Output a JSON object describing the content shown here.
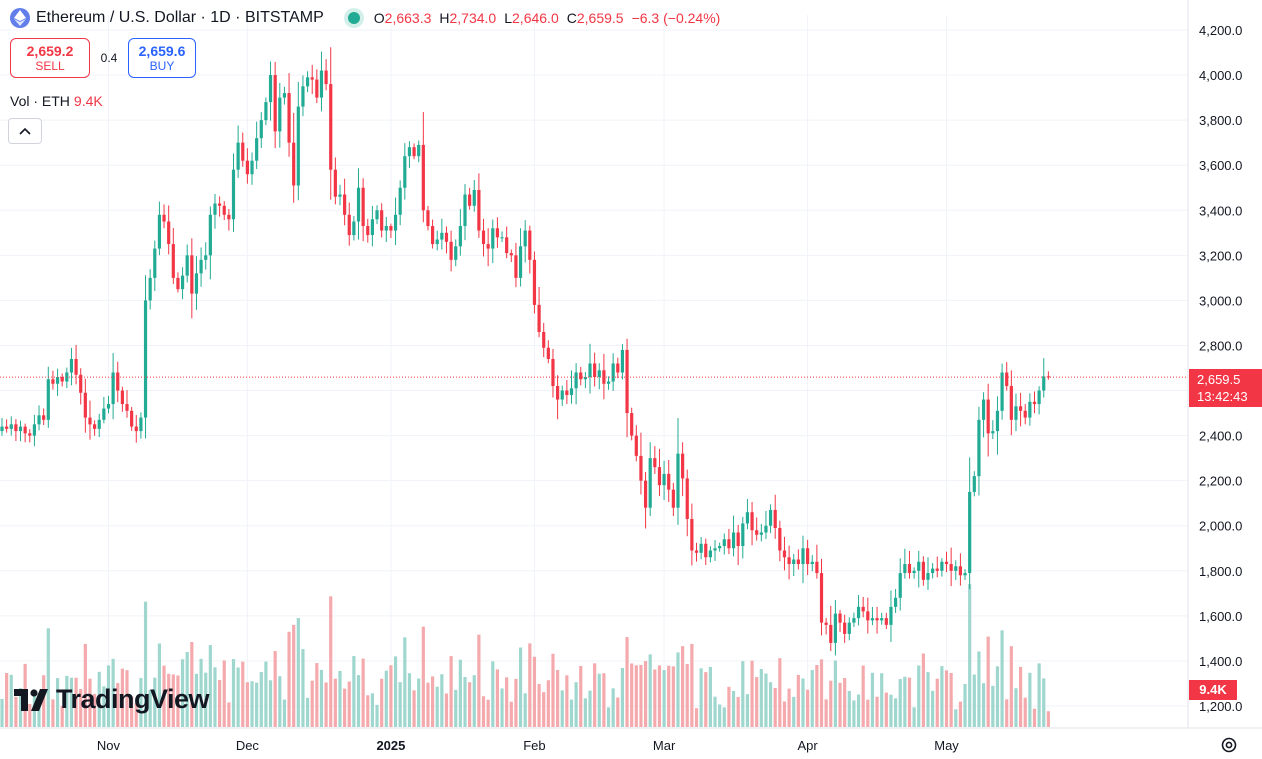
{
  "header": {
    "title": "Ethereum / U.S. Dollar · 1D · BITSTAMP",
    "ohlc": [
      {
        "k": "O",
        "v": "2,663.3"
      },
      {
        "k": "H",
        "v": "2,734.0"
      },
      {
        "k": "L",
        "v": "2,646.0"
      },
      {
        "k": "C",
        "v": "2,659.5"
      }
    ],
    "change": "−6.3 (−0.24%)"
  },
  "trade": {
    "sell_price": "2,659.2",
    "sell_label": "SELL",
    "spread": "0.4",
    "buy_price": "2,659.6",
    "buy_label": "BUY"
  },
  "volume": {
    "label": "Vol · ETH",
    "value": "9.4K"
  },
  "last_price": {
    "price": "2,659.5",
    "countdown": "13:42:43"
  },
  "volume_badge": "9.4K",
  "logo": "TradingView",
  "colors": {
    "up": "#22ab94",
    "down": "#f23645",
    "up_vol": "#9fd7cf",
    "down_vol": "#f4aaad",
    "grid": "#f0f3fa"
  },
  "chart_data": {
    "type": "candlestick",
    "symbol": "ETHUSD",
    "interval": "1D",
    "exchange": "BITSTAMP",
    "y_ticks": [
      "4,200.0",
      "4,000.0",
      "3,800.0",
      "3,600.0",
      "3,400.0",
      "3,200.0",
      "3,000.0",
      "2,800.0",
      "2,600.0",
      "2,400.0",
      "2,200.0",
      "2,000.0",
      "1,800.0",
      "1,600.0",
      "1,400.0",
      "1,200.0"
    ],
    "ylim": [
      1100,
      4300
    ],
    "x_labels": [
      "Nov",
      "Dec",
      "2025",
      "Feb",
      "Mar",
      "Apr",
      "May"
    ],
    "x_label_index": [
      23,
      53,
      84,
      115,
      143,
      174,
      204
    ],
    "last_close": 2659.5,
    "closes": [
      2440,
      2430,
      2450,
      2420,
      2440,
      2410,
      2400,
      2450,
      2490,
      2470,
      2650,
      2630,
      2660,
      2640,
      2680,
      2740,
      2670,
      2590,
      2480,
      2450,
      2430,
      2470,
      2520,
      2540,
      2680,
      2600,
      2540,
      2510,
      2440,
      2420,
      2480,
      3000,
      3100,
      3230,
      3380,
      3350,
      3250,
      3100,
      3050,
      3110,
      3200,
      3030,
      3120,
      3180,
      3200,
      3380,
      3430,
      3420,
      3380,
      3360,
      3580,
      3700,
      3620,
      3560,
      3620,
      3720,
      3800,
      3880,
      4000,
      3750,
      3900,
      3920,
      3700,
      3510,
      3860,
      3950,
      3990,
      3980,
      3900,
      4020,
      3960,
      3580,
      3460,
      3470,
      3380,
      3290,
      3350,
      3500,
      3330,
      3290,
      3360,
      3400,
      3310,
      3330,
      3310,
      3380,
      3500,
      3640,
      3680,
      3640,
      3690,
      3400,
      3330,
      3250,
      3270,
      3300,
      3260,
      3180,
      3240,
      3330,
      3470,
      3420,
      3490,
      3310,
      3250,
      3230,
      3320,
      3280,
      3280,
      3210,
      3200,
      3100,
      3240,
      3310,
      3180,
      2980,
      2860,
      2790,
      2740,
      2620,
      2560,
      2600,
      2580,
      2610,
      2680,
      2650,
      2660,
      2720,
      2660,
      2690,
      2630,
      2640,
      2720,
      2680,
      2780,
      2500,
      2400,
      2310,
      2200,
      2080,
      2300,
      2260,
      2180,
      2230,
      2160,
      2080,
      2320,
      2210,
      2030,
      1890,
      1880,
      1920,
      1860,
      1890,
      1900,
      1910,
      1940,
      1900,
      1970,
      1910,
      2010,
      2060,
      1980,
      1960,
      1970,
      2000,
      2070,
      1990,
      1890,
      1860,
      1830,
      1850,
      1830,
      1900,
      1830,
      1840,
      1790,
      1570,
      1560,
      1480,
      1610,
      1570,
      1520,
      1570,
      1590,
      1640,
      1620,
      1580,
      1590,
      1580,
      1590,
      1560,
      1640,
      1680,
      1790,
      1830,
      1790,
      1800,
      1840,
      1760,
      1790,
      1810,
      1800,
      1840,
      1830,
      1800,
      1820,
      1780,
      1790,
      2150,
      2220,
      2470,
      2560,
      2410,
      2420,
      2510,
      2680,
      2620,
      2470,
      2530,
      2510,
      2480,
      2550,
      2540,
      2600,
      2663,
      2659.5
    ]
  }
}
